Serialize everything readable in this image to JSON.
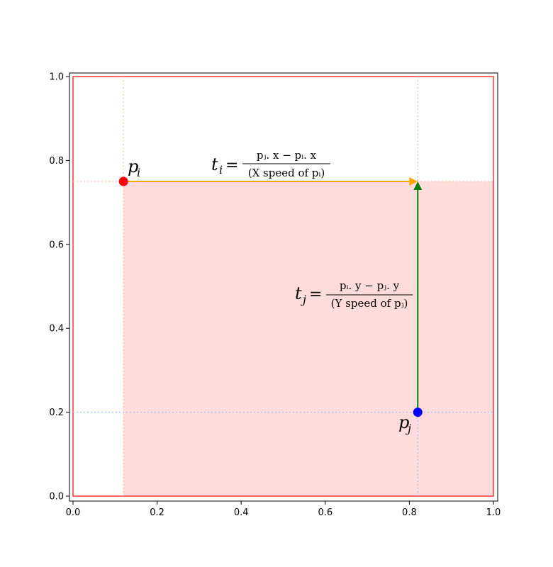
{
  "chart_data": {
    "type": "scatter",
    "xlim": [
      0.0,
      1.0
    ],
    "ylim": [
      0.0,
      1.0
    ],
    "xticks": [
      "0.0",
      "0.2",
      "0.4",
      "0.6",
      "0.8",
      "1.0"
    ],
    "yticks": [
      "0.0",
      "0.2",
      "0.4",
      "0.6",
      "0.8",
      "1.0"
    ],
    "grid": false,
    "points": [
      {
        "label_base": "p",
        "label_sub": "i",
        "x": 0.12,
        "y": 0.75,
        "color": "#ff0000"
      },
      {
        "label_base": "p",
        "label_sub": "j",
        "x": 0.82,
        "y": 0.2,
        "color": "#0000ff"
      }
    ],
    "guide_colors": {
      "pi": "#ffbf9f",
      "pj": "#9fbfff"
    },
    "boundary": {
      "x": [
        0.0,
        1.0
      ],
      "y": [
        0.0,
        1.0
      ],
      "color": "#ff0000"
    },
    "shaded_region": {
      "x": [
        0.12,
        1.0
      ],
      "y": [
        0.0,
        0.75
      ],
      "color": "#ffdcdc"
    },
    "arrows": [
      {
        "name": "ti",
        "from": [
          0.12,
          0.75
        ],
        "to": [
          0.82,
          0.75
        ],
        "color": "#ffa500"
      },
      {
        "name": "tj",
        "from": [
          0.82,
          0.2
        ],
        "to": [
          0.82,
          0.75
        ],
        "color": "#008000"
      }
    ],
    "annotations": {
      "ti": {
        "lhs_base": "t",
        "lhs_sub": "i",
        "eq": "=",
        "numerator": "pⱼ. x − pᵢ. x",
        "denominator": "(X speed of pᵢ)"
      },
      "tj": {
        "lhs_base": "t",
        "lhs_sub": "j",
        "eq": "=",
        "numerator": "pᵢ. y − pⱼ. y",
        "denominator": "(Y speed of pⱼ)"
      }
    }
  }
}
